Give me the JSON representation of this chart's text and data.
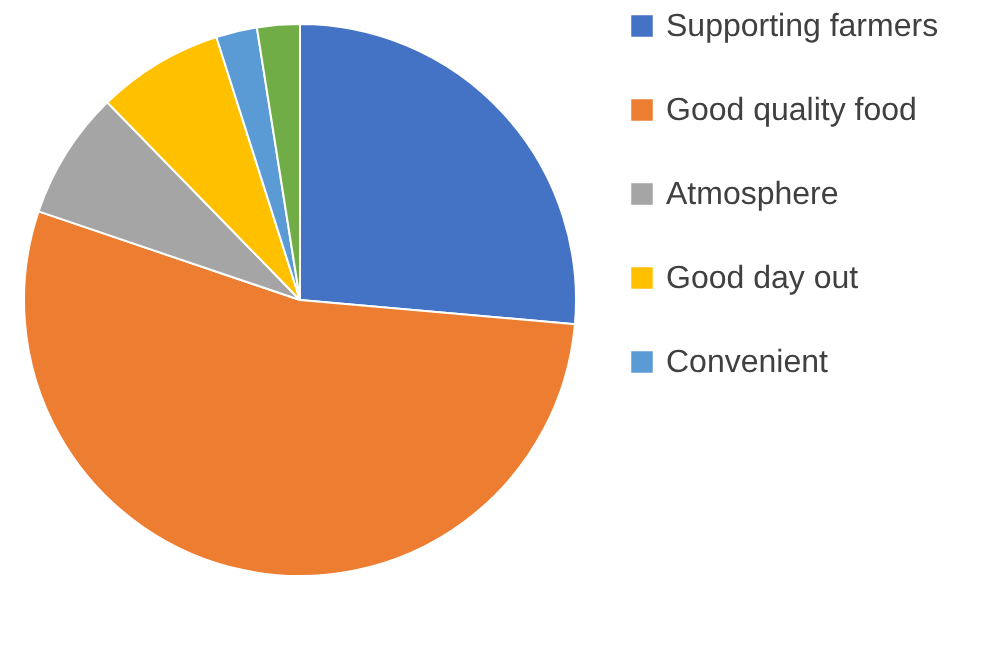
{
  "chart_data": {
    "type": "pie",
    "categories": [
      "Supporting farmers",
      "Good quality food",
      "Atmosphere",
      "Good day out",
      "Convenient",
      null
    ],
    "values": [
      26.4,
      53.8,
      7.5,
      7.4,
      2.4,
      2.5
    ],
    "colors": [
      "#4472c4",
      "#ed7d31",
      "#a5a5a5",
      "#ffc000",
      "#5b9bd5",
      "#70ad47"
    ],
    "legend": "right"
  }
}
